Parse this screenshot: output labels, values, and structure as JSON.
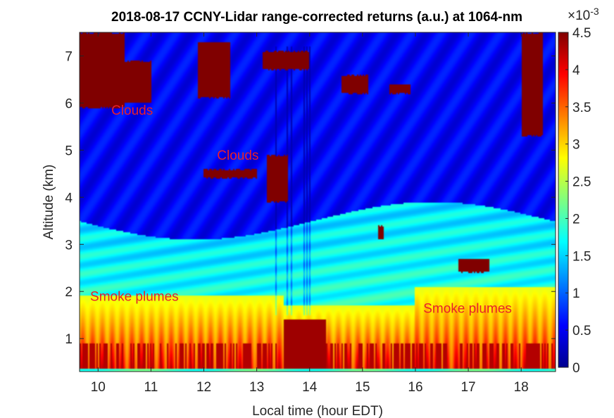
{
  "chart_data": {
    "type": "heatmap",
    "title": "2018-08-17 CCNY-Lidar range-corrected returns (a.u.) at 1064-nm",
    "xlabel": "Local time (hour EDT)",
    "ylabel": "Altitude (km)",
    "xlim": [
      9.65,
      18.65
    ],
    "ylim": [
      0.3,
      7.5
    ],
    "x_ticks": [
      10,
      11,
      12,
      13,
      14,
      15,
      16,
      17,
      18
    ],
    "y_ticks": [
      1,
      2,
      3,
      4,
      5,
      6,
      7
    ],
    "colorbar": {
      "ticks": [
        "0",
        "0.5",
        "1",
        "1.5",
        "2",
        "2.5",
        "3",
        "3.5",
        "4",
        "4.5"
      ],
      "range": [
        0,
        0.0045
      ],
      "exponent_base": "×10",
      "exponent": "-3",
      "colormap": "jet"
    },
    "features": [
      {
        "kind": "smoke",
        "t0": 9.65,
        "t1": 13.5,
        "base": 0.35,
        "top": 1.9
      },
      {
        "kind": "smoke",
        "t0": 13.5,
        "t1": 16.0,
        "base": 0.35,
        "top": 1.7
      },
      {
        "kind": "smoke",
        "t0": 16.0,
        "t1": 18.65,
        "base": 0.35,
        "top": 2.1
      },
      {
        "kind": "cloud",
        "t0": 9.65,
        "t1": 10.5,
        "base": 5.9,
        "top": 7.5
      },
      {
        "kind": "cloud",
        "t0": 10.3,
        "t1": 11.0,
        "base": 6.0,
        "top": 6.9
      },
      {
        "kind": "cloud",
        "t0": 11.9,
        "t1": 12.5,
        "base": 6.1,
        "top": 7.3
      },
      {
        "kind": "cloud",
        "t0": 12.0,
        "t1": 13.0,
        "base": 4.4,
        "top": 4.6
      },
      {
        "kind": "cloud",
        "t0": 13.2,
        "t1": 13.6,
        "base": 3.9,
        "top": 4.9
      },
      {
        "kind": "cloud",
        "t0": 13.1,
        "t1": 14.0,
        "base": 6.7,
        "top": 7.1
      },
      {
        "kind": "cloud",
        "t0": 14.6,
        "t1": 15.1,
        "base": 6.2,
        "top": 6.6
      },
      {
        "kind": "cloud",
        "t0": 15.5,
        "t1": 15.9,
        "base": 6.2,
        "top": 6.4
      },
      {
        "kind": "cloud",
        "t0": 18.0,
        "t1": 18.4,
        "base": 5.3,
        "top": 7.5
      },
      {
        "kind": "cloud",
        "t0": 15.3,
        "t1": 15.4,
        "base": 3.1,
        "top": 3.4
      },
      {
        "kind": "cloud",
        "t0": 16.8,
        "t1": 17.4,
        "base": 2.4,
        "top": 2.7
      }
    ],
    "annotations": [
      {
        "text": "Clouds",
        "x": 10.25,
        "y": 5.75
      },
      {
        "text": "Clouds",
        "x": 12.25,
        "y": 4.8
      },
      {
        "text": "Smoke plumes",
        "x": 9.85,
        "y": 1.8
      },
      {
        "text": "Smoke plumes",
        "x": 16.15,
        "y": 1.55
      }
    ]
  }
}
